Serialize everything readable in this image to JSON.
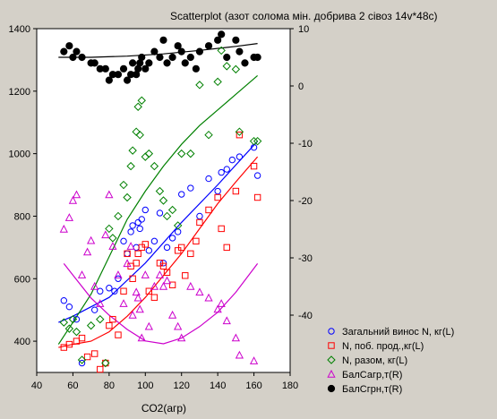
{
  "chart_data": {
    "type": "scatter",
    "title": "Scatterplot (азот солома мін. добрива 2 сівоз 14v*48c)",
    "xlabel": "СО2(агр)",
    "xlim": [
      40,
      180
    ],
    "xticks": [
      40,
      60,
      80,
      100,
      120,
      140,
      160,
      180
    ],
    "ylim_left": [
      300,
      1400
    ],
    "yticks_left": [
      400,
      600,
      800,
      1000,
      1200,
      1400
    ],
    "ylim_right": [
      -50,
      10
    ],
    "yticks_right": [
      -40,
      -30,
      -20,
      -10,
      0,
      10
    ],
    "legend_position": "bottom-right",
    "series": [
      {
        "name": "Загальний винос  N, кг(L)",
        "axis": "left",
        "marker": "circle-open",
        "color": "#0000ff",
        "x": [
          55,
          58,
          62,
          65,
          72,
          75,
          80,
          83,
          85,
          88,
          90,
          92,
          93,
          95,
          96,
          97,
          98,
          100,
          102,
          105,
          108,
          110,
          112,
          115,
          118,
          120,
          125,
          130,
          135,
          140,
          142,
          145,
          148,
          152,
          160,
          162
        ],
        "y": [
          530,
          510,
          470,
          330,
          500,
          560,
          570,
          560,
          600,
          720,
          680,
          750,
          770,
          700,
          780,
          760,
          790,
          820,
          690,
          720,
          810,
          650,
          700,
          730,
          750,
          870,
          890,
          800,
          920,
          880,
          940,
          950,
          980,
          990,
          1020,
          930
        ],
        "fit": [
          [
            52,
            460
          ],
          [
            60,
            480
          ],
          [
            80,
            540
          ],
          [
            100,
            650
          ],
          [
            120,
            780
          ],
          [
            140,
            900
          ],
          [
            162,
            1040
          ]
        ]
      },
      {
        "name": "N, поб. прод.,кг(L)",
        "axis": "left",
        "marker": "square-open",
        "color": "#ff0000",
        "x": [
          55,
          58,
          62,
          65,
          68,
          72,
          75,
          78,
          80,
          82,
          85,
          88,
          90,
          92,
          93,
          95,
          96,
          98,
          100,
          102,
          105,
          108,
          110,
          112,
          115,
          118,
          120,
          122,
          125,
          128,
          130,
          135,
          140,
          142,
          145,
          150,
          152,
          160,
          162
        ],
        "y": [
          380,
          390,
          400,
          410,
          350,
          360,
          310,
          330,
          450,
          470,
          420,
          560,
          680,
          640,
          600,
          650,
          680,
          700,
          710,
          560,
          540,
          650,
          640,
          620,
          580,
          690,
          700,
          610,
          680,
          720,
          780,
          820,
          860,
          760,
          700,
          880,
          1060,
          960,
          860
        ],
        "fit": [
          [
            52,
            380
          ],
          [
            60,
            390
          ],
          [
            70,
            400
          ],
          [
            80,
            430
          ],
          [
            90,
            480
          ],
          [
            100,
            540
          ],
          [
            110,
            610
          ],
          [
            120,
            680
          ],
          [
            130,
            760
          ],
          [
            140,
            840
          ],
          [
            150,
            910
          ],
          [
            162,
            990
          ]
        ]
      },
      {
        "name": "N, разом, кг(L)",
        "axis": "left",
        "marker": "diamond-open",
        "color": "#008000",
        "x": [
          55,
          58,
          60,
          62,
          65,
          70,
          75,
          78,
          80,
          82,
          85,
          88,
          90,
          92,
          93,
          95,
          96,
          97,
          98,
          100,
          102,
          105,
          108,
          110,
          112,
          115,
          118,
          120,
          125,
          130,
          135,
          140,
          142,
          145,
          150,
          152,
          160,
          162
        ],
        "y": [
          460,
          440,
          470,
          430,
          340,
          450,
          470,
          330,
          760,
          730,
          800,
          900,
          860,
          960,
          1010,
          1070,
          1150,
          1060,
          1170,
          990,
          1000,
          960,
          880,
          850,
          800,
          820,
          770,
          1000,
          1000,
          1220,
          1060,
          1230,
          1330,
          1280,
          1270,
          1070,
          1040,
          1040
        ],
        "fit": [
          [
            52,
            390
          ],
          [
            60,
            460
          ],
          [
            70,
            550
          ],
          [
            80,
            670
          ],
          [
            90,
            790
          ],
          [
            100,
            880
          ],
          [
            110,
            960
          ],
          [
            120,
            1030
          ],
          [
            130,
            1090
          ],
          [
            140,
            1140
          ],
          [
            150,
            1190
          ],
          [
            162,
            1250
          ]
        ]
      },
      {
        "name": "БалСагр,т(R)",
        "axis": "right",
        "marker": "triangle-open",
        "color": "#cc00cc",
        "x": [
          55,
          58,
          60,
          62,
          65,
          68,
          70,
          72,
          75,
          78,
          80,
          82,
          85,
          88,
          90,
          92,
          93,
          95,
          96,
          97,
          98,
          100,
          102,
          105,
          108,
          110,
          112,
          115,
          118,
          120,
          125,
          130,
          135,
          140,
          142,
          145,
          150,
          152,
          160
        ],
        "y": [
          -25,
          -23,
          -20,
          -19,
          -33,
          -29,
          -27,
          -35,
          -38,
          -26,
          -19,
          -28,
          -33,
          -38,
          -31,
          -28,
          -40,
          -36,
          -37,
          -39,
          -44,
          -33,
          -42,
          -35,
          -33,
          -35,
          -34,
          -40,
          -42,
          -44,
          -35,
          -36,
          -37,
          -39,
          -38,
          -41,
          -44,
          -47,
          -48
        ],
        "fit": [
          [
            55,
            -31
          ],
          [
            60,
            -33
          ],
          [
            70,
            -37
          ],
          [
            80,
            -40
          ],
          [
            90,
            -42.5
          ],
          [
            100,
            -44.5
          ],
          [
            110,
            -45
          ],
          [
            120,
            -44
          ],
          [
            130,
            -42
          ],
          [
            140,
            -39.5
          ],
          [
            150,
            -36
          ],
          [
            162,
            -31
          ]
        ]
      },
      {
        "name": "БалСгрн,т(R)",
        "axis": "right",
        "marker": "circle-filled",
        "color": "#000000",
        "x": [
          55,
          58,
          60,
          62,
          65,
          70,
          72,
          75,
          78,
          80,
          82,
          85,
          88,
          90,
          92,
          93,
          95,
          96,
          97,
          98,
          100,
          102,
          105,
          108,
          110,
          112,
          115,
          118,
          120,
          122,
          125,
          128,
          130,
          135,
          140,
          142,
          145,
          150,
          152,
          155,
          160,
          162
        ],
        "y": [
          6,
          7,
          5,
          6,
          5,
          4,
          4,
          3,
          3,
          1,
          2,
          2,
          3,
          1,
          2,
          4,
          2,
          3,
          4,
          5,
          3,
          4,
          6,
          5,
          8,
          4,
          5,
          7,
          6,
          4,
          5,
          3,
          6,
          7,
          8,
          9,
          5,
          8,
          6,
          4,
          5,
          5
        ],
        "fit": [
          [
            52,
            5
          ],
          [
            70,
            5
          ],
          [
            90,
            5.2
          ],
          [
            110,
            5.6
          ],
          [
            130,
            6.2
          ],
          [
            150,
            6.9
          ],
          [
            162,
            7.4
          ]
        ]
      }
    ]
  }
}
